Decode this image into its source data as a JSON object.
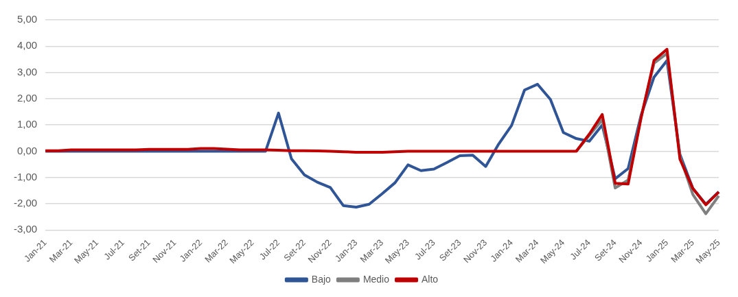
{
  "chart_data": {
    "type": "line",
    "categories": [
      "Jan-21",
      null,
      "Mar-21",
      null,
      "May-21",
      null,
      "Jul-21",
      null,
      "Set-21",
      null,
      "Nov-21",
      null,
      "Jan-22",
      null,
      "Mar-22",
      null,
      "May-22",
      null,
      "Jul-22",
      null,
      "Set-22",
      null,
      "Nov-22",
      null,
      "Jan-23",
      null,
      "Mar-23",
      null,
      "May-23",
      null,
      "Jul-23",
      null,
      "Set-23",
      null,
      "Nov-23",
      null,
      "Jan-24",
      null,
      "Mar-24",
      null,
      "May-24",
      null,
      "Jul-24",
      null,
      "Set-24",
      null,
      "Nov-24",
      null,
      "Jan-25",
      null,
      "Mar-25",
      null,
      "May-25"
    ],
    "series": [
      {
        "name": "Bajo",
        "color": "#2f5597",
        "values": [
          0,
          0,
          0,
          0,
          0,
          0,
          0,
          0,
          0,
          0,
          0,
          0,
          0,
          0,
          0,
          0,
          0,
          0,
          1.45,
          -0.29,
          -0.9,
          -1.18,
          -1.38,
          -2.07,
          -2.13,
          -2.02,
          -1.62,
          -1.2,
          -0.52,
          -0.74,
          -0.68,
          -0.43,
          -0.17,
          -0.15,
          -0.58,
          0.27,
          0.98,
          2.33,
          2.55,
          1.97,
          0.71,
          0.48,
          0.38,
          1.0,
          -1.05,
          -0.66,
          1.37,
          2.82,
          3.45,
          -0.12,
          -1.42,
          -2.02,
          -1.55
        ]
      },
      {
        "name": "Medio",
        "color": "#7f7f7f",
        "values": [
          null,
          null,
          null,
          null,
          null,
          null,
          null,
          null,
          null,
          null,
          null,
          null,
          null,
          null,
          null,
          null,
          null,
          null,
          null,
          null,
          null,
          null,
          null,
          null,
          null,
          null,
          null,
          null,
          null,
          null,
          null,
          null,
          null,
          null,
          null,
          null,
          null,
          null,
          null,
          null,
          null,
          0,
          0.6,
          1.2,
          -1.4,
          -1.1,
          1.3,
          3.35,
          3.72,
          -0.2,
          -1.65,
          -2.38,
          -1.7
        ]
      },
      {
        "name": "Alto",
        "color": "#c00000",
        "values": [
          0.02,
          0.02,
          0.05,
          0.05,
          0.05,
          0.05,
          0.05,
          0.05,
          0.07,
          0.07,
          0.07,
          0.07,
          0.1,
          0.1,
          0.08,
          0.05,
          0.05,
          0.05,
          0.04,
          0.02,
          0.02,
          0.01,
          0,
          -0.02,
          -0.04,
          -0.04,
          -0.04,
          -0.02,
          0,
          0,
          0,
          0,
          0,
          0,
          0,
          0,
          0,
          0,
          0,
          0,
          0,
          0,
          0.65,
          1.4,
          -1.22,
          -1.25,
          1.27,
          3.46,
          3.88,
          -0.3,
          -1.42,
          -2.04,
          -1.55
        ]
      }
    ],
    "ylim": [
      -3,
      5
    ],
    "yticks": [
      {
        "value": -3,
        "label": "-3,00"
      },
      {
        "value": -2,
        "label": "-2,00"
      },
      {
        "value": -1,
        "label": "-1,00"
      },
      {
        "value": 0,
        "label": "0,00"
      },
      {
        "value": 1,
        "label": "1,00"
      },
      {
        "value": 2,
        "label": "2,00"
      },
      {
        "value": 3,
        "label": "3,00"
      },
      {
        "value": 4,
        "label": "4,00"
      },
      {
        "value": 5,
        "label": "5,00"
      }
    ],
    "grid": "y",
    "legend": "bottom",
    "marker": "none",
    "line_style": "solid"
  }
}
